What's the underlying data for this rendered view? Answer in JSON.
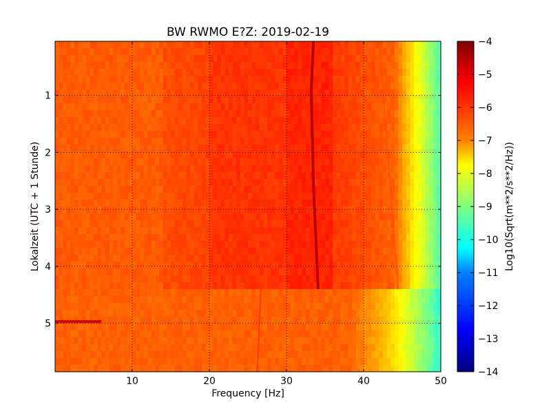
{
  "chart_data": {
    "type": "heatmap",
    "title": "BW RWMO E?Z: 2019-02-19",
    "xlabel": "Frequency [Hz]",
    "ylabel": "Lokalzeit (UTC + 1 Stunde)",
    "xlim": [
      0,
      50
    ],
    "ylim": [
      5.85,
      0.05
    ],
    "y_inverted": true,
    "xticks": [
      10,
      20,
      30,
      40,
      50
    ],
    "yticks": [
      1,
      2,
      3,
      4,
      5
    ],
    "grid": true,
    "colormap": "jet",
    "colorbar": {
      "label": "Log10(Sqrt(m**2/s**2/Hz))",
      "range": [
        -14,
        -4
      ],
      "ticks": [
        -4,
        -5,
        -6,
        -7,
        -8,
        -9,
        -10,
        -11,
        -12,
        -13,
        -14
      ]
    },
    "features": [
      {
        "kind": "high-power band",
        "freq_range_hz": [
          14,
          40
        ],
        "time_range_h": [
          0.05,
          4.4
        ],
        "level": -5.6
      },
      {
        "kind": "tonal line",
        "freq_hz": [
          33.2,
          34.1
        ],
        "time_range_h": [
          0.05,
          4.4
        ],
        "level": -4.6
      },
      {
        "kind": "broadband step",
        "time_h": 4.4,
        "freq_range_hz": [
          0,
          50
        ]
      },
      {
        "kind": "tonal line",
        "freq_hz": 26.5,
        "time_range_h": [
          4.4,
          5.85
        ],
        "level": -5.8
      },
      {
        "kind": "transient",
        "freq_range_hz": [
          0,
          6
        ],
        "time_h": 4.97,
        "level": -4.8
      }
    ]
  }
}
